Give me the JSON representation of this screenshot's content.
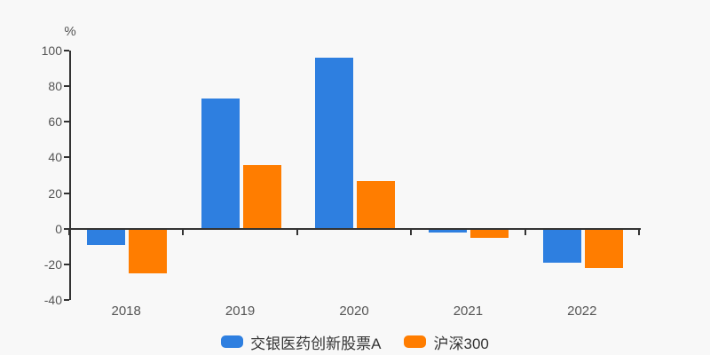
{
  "chart_data": {
    "type": "bar",
    "title": "",
    "xlabel": "",
    "ylabel": "%",
    "categories": [
      "2018",
      "2019",
      "2020",
      "2021",
      "2022"
    ],
    "series": [
      {
        "id": "fund",
        "name": "交银医药创新股票A",
        "color": "#2E7FE0",
        "values": [
          -9,
          73,
          96,
          -2,
          -19
        ]
      },
      {
        "id": "index",
        "name": "沪深300",
        "color": "#FF7D00",
        "values": [
          -25,
          36,
          27,
          -5,
          -22
        ]
      }
    ],
    "ylim": [
      -40,
      100
    ],
    "yticks": [
      100,
      80,
      60,
      40,
      20,
      0,
      -20,
      -40
    ],
    "grid": false,
    "legend_position": "bottom"
  },
  "colors": {
    "background": "#F8F8F8",
    "axis": "#333333",
    "tick_label": "#555555",
    "unit_label": "#555555",
    "legend_text": "#333333"
  }
}
